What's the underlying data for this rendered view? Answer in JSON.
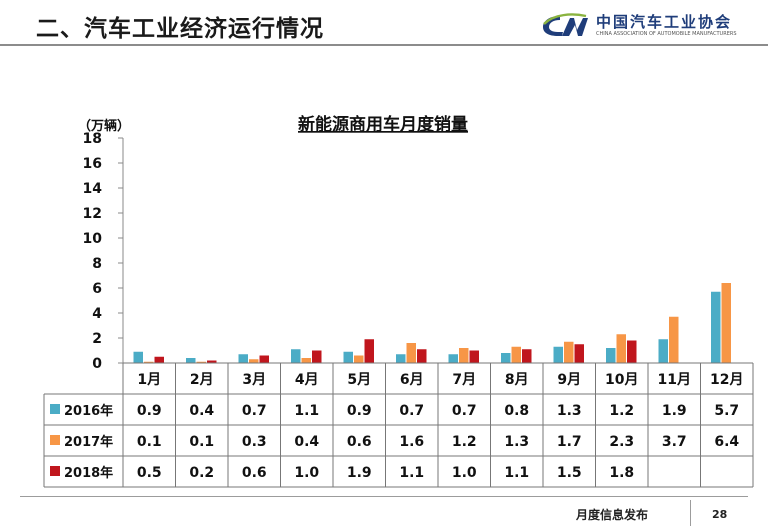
{
  "header": {
    "title": "二、汽车工业经济运行情况",
    "logo_name": "中国汽车工业协会",
    "logo_sub": "CHINA ASSOCIATION OF AUTOMOBILE MANUFACTURERS"
  },
  "footer": {
    "text": "月度信息发布",
    "page": "28"
  },
  "chart_data": {
    "type": "bar",
    "title": "新能源商用车月度销量",
    "ylabel": "（万辆）",
    "xlabel": "",
    "ylim": [
      0,
      18
    ],
    "yticks": [
      0,
      2,
      4,
      6,
      8,
      10,
      12,
      14,
      16,
      18
    ],
    "grid": false,
    "legend": "data-table-rows",
    "categories": [
      "1月",
      "2月",
      "3月",
      "4月",
      "5月",
      "6月",
      "7月",
      "8月",
      "9月",
      "10月",
      "11月",
      "12月"
    ],
    "series": [
      {
        "name": "2016年",
        "color": "#4bacc6",
        "values": [
          0.9,
          0.4,
          0.7,
          1.1,
          0.9,
          0.7,
          0.7,
          0.8,
          1.3,
          1.2,
          1.9,
          5.7
        ]
      },
      {
        "name": "2017年",
        "color": "#f79646",
        "values": [
          0.1,
          0.1,
          0.3,
          0.4,
          0.6,
          1.6,
          1.2,
          1.3,
          1.7,
          2.3,
          3.7,
          6.4
        ]
      },
      {
        "name": "2018年",
        "color": "#c0161d",
        "values": [
          0.5,
          0.2,
          0.6,
          1.0,
          1.9,
          1.1,
          1.0,
          1.1,
          1.5,
          1.8,
          null,
          null
        ]
      }
    ]
  }
}
